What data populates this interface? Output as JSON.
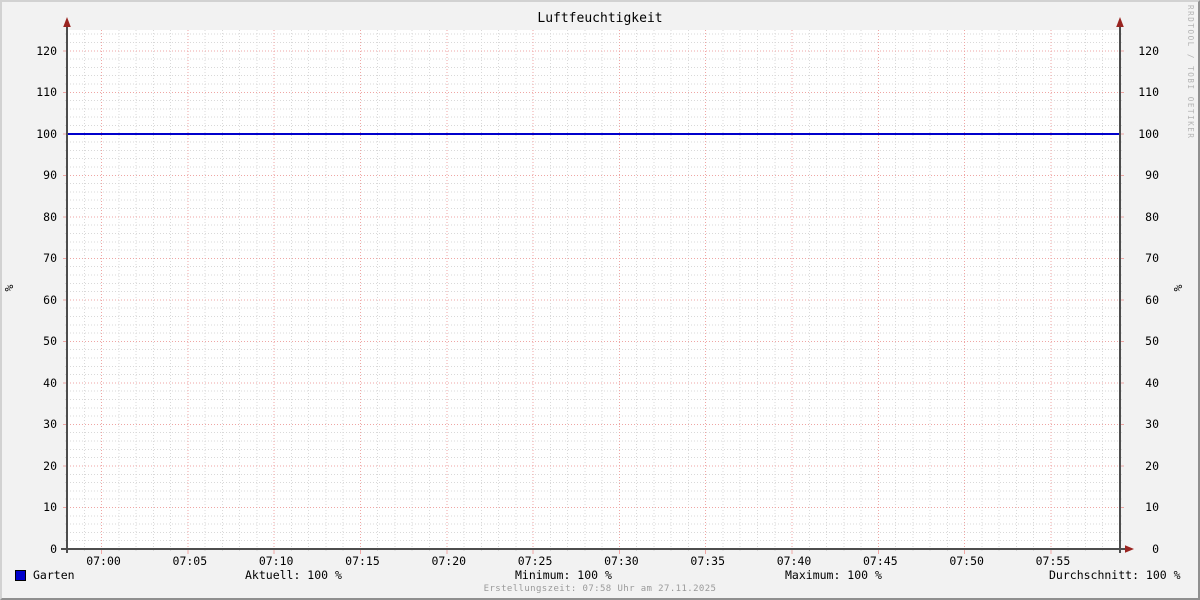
{
  "title": "Luftfeuchtigkeit",
  "watermark": "RRDTOOL / TOBI OETIKER",
  "footer": "Erstellungszeit: 07:58 Uhr am 27.11.2025",
  "y_axis": {
    "unit_label": "%",
    "ticks": [
      0,
      10,
      20,
      30,
      40,
      50,
      60,
      70,
      80,
      90,
      100,
      110,
      120
    ]
  },
  "x_axis": {
    "ticks": [
      "07:00",
      "07:05",
      "07:10",
      "07:15",
      "07:20",
      "07:25",
      "07:30",
      "07:35",
      "07:40",
      "07:45",
      "07:50",
      "07:55"
    ]
  },
  "legend": {
    "series_label": "Garten",
    "series_color": "#0000cc",
    "stats": [
      {
        "label": "Aktuell",
        "value": "100 %",
        "text": "Aktuell: 100 %"
      },
      {
        "label": "Minimum",
        "value": "100 %",
        "text": "Minimum: 100 %"
      },
      {
        "label": "Maximum",
        "value": "100 %",
        "text": "Maximum: 100 %"
      },
      {
        "label": "Durchschnitt",
        "value": "100 %",
        "text": "Durchschnitt: 100 %"
      }
    ]
  },
  "colors": {
    "canvas_bg": "#f2f2f2",
    "plot_bg": "#ffffff",
    "axis": "#4d4d4d",
    "arrow": "#992420",
    "major_grid": "#efa6a4",
    "minor_grid": "#d9d9d9",
    "series": "#0000cc"
  },
  "chart_data": {
    "type": "line",
    "title": "Luftfeuchtigkeit",
    "xlabel": "",
    "ylabel": "%",
    "ylim": [
      0,
      125
    ],
    "y_ticks": [
      0,
      10,
      20,
      30,
      40,
      50,
      60,
      70,
      80,
      90,
      100,
      110,
      120
    ],
    "y_minor_step": 2,
    "x_tick_labels": [
      "07:00",
      "07:05",
      "07:10",
      "07:15",
      "07:20",
      "07:25",
      "07:30",
      "07:35",
      "07:40",
      "07:45",
      "07:50",
      "07:55"
    ],
    "x_minor_step_minutes": 1,
    "grid": true,
    "legend_position": "bottom",
    "series": [
      {
        "name": "Garten",
        "color": "#0000cc",
        "points": [
          {
            "x": "06:58",
            "y": 100
          },
          {
            "x": "07:59",
            "y": 100
          }
        ]
      }
    ],
    "stats": {
      "aktuell": "100 %",
      "minimum": "100 %",
      "maximum": "100 %",
      "durchschnitt": "100 %"
    }
  }
}
